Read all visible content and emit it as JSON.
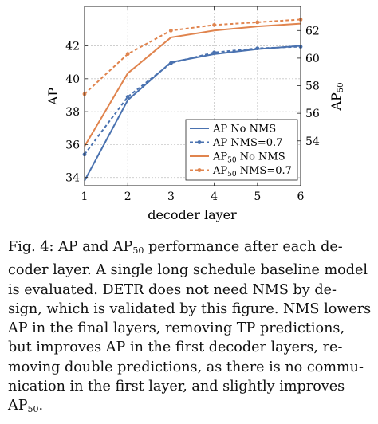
{
  "chart_data": {
    "type": "line",
    "x": [
      1,
      2,
      3,
      4,
      5,
      6
    ],
    "xlabel": "decoder layer",
    "ylabel_left": "AP",
    "ylabel_right": "AP50",
    "ylim_left": [
      33.5,
      44.4
    ],
    "ylim_right": [
      50.75,
      63.75
    ],
    "xticks": [
      "1",
      "2",
      "3",
      "4",
      "5",
      "6"
    ],
    "yticks_left": [
      "34",
      "36",
      "38",
      "40",
      "42"
    ],
    "yticks_right": [
      "54",
      "56",
      "58",
      "60",
      "62"
    ],
    "grid": true,
    "legend_position": "bottom-right",
    "series": [
      {
        "name": "AP No NMS",
        "axis": "left",
        "color": "#4a72b0",
        "dash": false,
        "marker": false,
        "values": [
          33.8,
          38.7,
          41.0,
          41.5,
          41.8,
          42.0
        ]
      },
      {
        "name": "AP NMS=0.7",
        "axis": "left",
        "color": "#4a72b0",
        "dash": true,
        "marker": true,
        "values": [
          35.4,
          38.9,
          40.95,
          41.6,
          41.85,
          41.95
        ]
      },
      {
        "name": "AP50 No NMS",
        "axis": "right",
        "color": "#e0844e",
        "dash": false,
        "marker": false,
        "values": [
          53.6,
          58.9,
          61.5,
          62.0,
          62.3,
          62.5
        ]
      },
      {
        "name": "AP50 NMS=0.7",
        "axis": "right",
        "color": "#e0844e",
        "dash": true,
        "marker": true,
        "values": [
          57.4,
          60.3,
          62.0,
          62.4,
          62.6,
          62.8
        ]
      }
    ]
  },
  "caption": {
    "label": "Fig. 4:",
    "lines": [
      "AP and AP50 performance after each de-",
      "coder layer. A single long schedule baseline model",
      "is evaluated. DETR does not need NMS by de-",
      "sign, which is validated by this figure. NMS lowers",
      "AP in the final layers, removing TP predictions,",
      "but improves AP in the first decoder layers, re-",
      "moving double predictions, as there is no commu-",
      "nication in the first layer, and slightly improves",
      "AP50."
    ]
  }
}
